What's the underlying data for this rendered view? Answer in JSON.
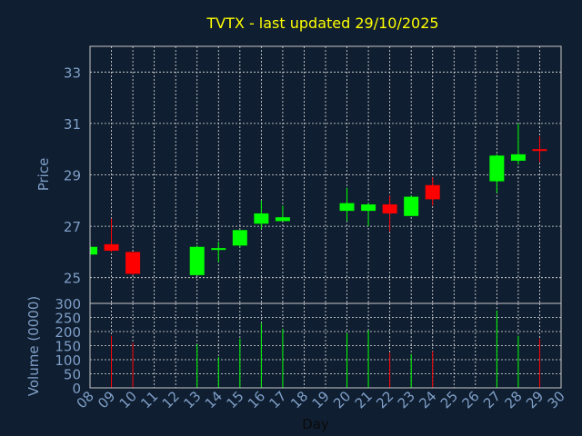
{
  "chart_data": {
    "type": "candlestick",
    "title": "TVTX - last updated 29/10/2025",
    "xlabel": "Day",
    "price_ylabel": "Price",
    "volume_ylabel": "Volume (0000)",
    "x_ticks": [
      "08",
      "09",
      "10",
      "11",
      "12",
      "13",
      "14",
      "15",
      "16",
      "17",
      "18",
      "19",
      "20",
      "21",
      "22",
      "23",
      "24",
      "25",
      "26",
      "27",
      "28",
      "29",
      "30"
    ],
    "xlim": [
      8,
      30
    ],
    "price_ylim": [
      24.0,
      34.0
    ],
    "price_ticks": [
      25,
      27,
      29,
      31,
      33
    ],
    "volume_ylim": [
      0,
      300
    ],
    "volume_ticks": [
      0,
      50,
      100,
      150,
      200,
      250,
      300
    ],
    "grid": true,
    "up_color": "#00ff00",
    "down_color": "#ff0000",
    "candles": [
      {
        "day": 8,
        "open": 25.9,
        "high": 26.25,
        "low": 25.9,
        "close": 26.2,
        "volume": null
      },
      {
        "day": 9,
        "open": 26.3,
        "high": 27.3,
        "low": 26.0,
        "close": 26.05,
        "volume": 185
      },
      {
        "day": 10,
        "open": 26.0,
        "high": 26.0,
        "low": 25.1,
        "close": 25.15,
        "volume": 160
      },
      {
        "day": 13,
        "open": 25.1,
        "high": 26.25,
        "low": 25.1,
        "close": 26.2,
        "volume": 155
      },
      {
        "day": 14,
        "open": 26.1,
        "high": 26.4,
        "low": 25.6,
        "close": 26.15,
        "volume": 110
      },
      {
        "day": 15,
        "open": 26.25,
        "high": 26.85,
        "low": 26.2,
        "close": 26.85,
        "volume": 175
      },
      {
        "day": 16,
        "open": 27.1,
        "high": 28.0,
        "low": 26.9,
        "close": 27.5,
        "volume": 230
      },
      {
        "day": 17,
        "open": 27.2,
        "high": 27.8,
        "low": 27.2,
        "close": 27.35,
        "volume": 210
      },
      {
        "day": 20,
        "open": 27.6,
        "high": 28.5,
        "low": 27.2,
        "close": 27.9,
        "volume": 195
      },
      {
        "day": 21,
        "open": 27.6,
        "high": 27.9,
        "low": 27.0,
        "close": 27.85,
        "volume": 205
      },
      {
        "day": 22,
        "open": 27.85,
        "high": 28.2,
        "low": 26.8,
        "close": 27.5,
        "volume": 125
      },
      {
        "day": 23,
        "open": 27.4,
        "high": 28.2,
        "low": 27.4,
        "close": 28.15,
        "volume": 120
      },
      {
        "day": 24,
        "open": 28.6,
        "high": 28.9,
        "low": 27.8,
        "close": 28.05,
        "volume": 130
      },
      {
        "day": 27,
        "open": 28.75,
        "high": 29.8,
        "low": 28.3,
        "close": 29.75,
        "volume": 275
      },
      {
        "day": 28,
        "open": 29.55,
        "high": 31.0,
        "low": 29.4,
        "close": 29.8,
        "volume": 185
      },
      {
        "day": 29,
        "open": 30.0,
        "high": 30.5,
        "low": 29.5,
        "close": 29.95,
        "volume": 175
      }
    ]
  }
}
